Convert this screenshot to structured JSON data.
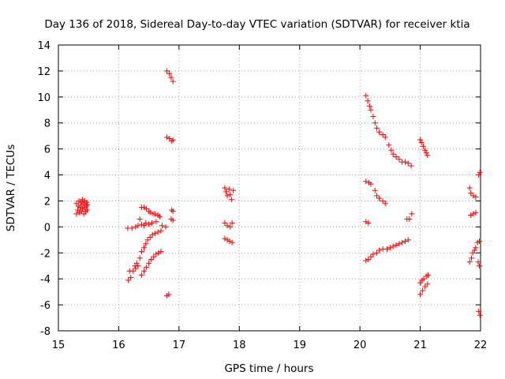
{
  "chart_data": {
    "type": "scatter",
    "title": "Day 136 of 2018, Sidereal Day-to-day VTEC variation (SDTVAR) for receiver ktia",
    "xlabel": "GPS time / hours",
    "ylabel": "SDTVAR / TECUs",
    "xlim": [
      15,
      22
    ],
    "ylim": [
      -8,
      14
    ],
    "xticks": [
      "15",
      "16",
      "17",
      "18",
      "19",
      "20",
      "21",
      "22"
    ],
    "yticks": [
      "-8",
      "-6",
      "-4",
      "-2",
      "0",
      "2",
      "4",
      "6",
      "8",
      "10",
      "12",
      "14"
    ],
    "grid": true,
    "marker": "+",
    "marker_color": "#ff0000",
    "series": [
      {
        "name": "SDTVAR",
        "points": [
          [
            15.3,
            1.0
          ],
          [
            15.3,
            1.8
          ],
          [
            15.32,
            1.3
          ],
          [
            15.33,
            1.6
          ],
          [
            15.34,
            2.0
          ],
          [
            15.35,
            1.1
          ],
          [
            15.36,
            1.5
          ],
          [
            15.37,
            1.9
          ],
          [
            15.38,
            1.2
          ],
          [
            15.39,
            1.7
          ],
          [
            15.4,
            2.1
          ],
          [
            15.4,
            1.4
          ],
          [
            15.42,
            1.0
          ],
          [
            15.42,
            1.8
          ],
          [
            15.43,
            1.5
          ],
          [
            15.44,
            2.0
          ],
          [
            15.45,
            1.2
          ],
          [
            15.46,
            1.6
          ],
          [
            15.47,
            1.9
          ],
          [
            15.48,
            1.3
          ],
          [
            15.48,
            1.7
          ],
          [
            16.15,
            -0.1
          ],
          [
            16.22,
            -0.1
          ],
          [
            16.28,
            0.0
          ],
          [
            16.32,
            0.1
          ],
          [
            16.35,
            0.6
          ],
          [
            16.38,
            0.2
          ],
          [
            16.42,
            0.1
          ],
          [
            16.45,
            0.3
          ],
          [
            16.5,
            0.2
          ],
          [
            16.55,
            0.3
          ],
          [
            16.62,
            0.4
          ],
          [
            16.68,
            0.8
          ],
          [
            16.72,
            0.1
          ],
          [
            16.78,
            0.0
          ],
          [
            16.38,
            1.5
          ],
          [
            16.42,
            1.5
          ],
          [
            16.46,
            1.4
          ],
          [
            16.5,
            1.2
          ],
          [
            16.53,
            1.1
          ],
          [
            16.57,
            1.0
          ],
          [
            16.6,
            1.0
          ],
          [
            16.65,
            0.9
          ],
          [
            16.38,
            -1.9
          ],
          [
            16.42,
            -1.6
          ],
          [
            16.45,
            -1.3
          ],
          [
            16.48,
            -1.0
          ],
          [
            16.52,
            -0.8
          ],
          [
            16.56,
            -0.6
          ],
          [
            16.6,
            -0.5
          ],
          [
            16.65,
            -0.4
          ],
          [
            16.7,
            -0.3
          ],
          [
            16.16,
            -4.1
          ],
          [
            16.2,
            -3.9
          ],
          [
            16.24,
            -3.4
          ],
          [
            16.27,
            -3.0
          ],
          [
            16.3,
            -2.8
          ],
          [
            16.35,
            -2.4
          ],
          [
            16.38,
            -3.7
          ],
          [
            16.42,
            -3.4
          ],
          [
            16.46,
            -3.1
          ],
          [
            16.5,
            -2.8
          ],
          [
            16.54,
            -2.5
          ],
          [
            16.58,
            -2.3
          ],
          [
            16.62,
            -2.1
          ],
          [
            16.66,
            -2.0
          ],
          [
            16.7,
            -1.9
          ],
          [
            16.18,
            -3.4
          ],
          [
            16.28,
            -3.2
          ],
          [
            16.32,
            -3.0
          ],
          [
            16.8,
            12.0
          ],
          [
            16.84,
            11.8
          ],
          [
            16.87,
            11.5
          ],
          [
            16.9,
            11.2
          ],
          [
            16.8,
            6.9
          ],
          [
            16.84,
            6.8
          ],
          [
            16.88,
            6.6
          ],
          [
            16.9,
            6.7
          ],
          [
            16.88,
            1.3
          ],
          [
            16.9,
            1.2
          ],
          [
            16.87,
            0.6
          ],
          [
            16.9,
            0.5
          ],
          [
            16.8,
            -5.3
          ],
          [
            16.83,
            -5.2
          ],
          [
            17.76,
            3.0
          ],
          [
            17.78,
            2.7
          ],
          [
            17.8,
            2.4
          ],
          [
            17.83,
            2.9
          ],
          [
            17.85,
            2.5
          ],
          [
            17.87,
            2.1
          ],
          [
            17.9,
            2.8
          ],
          [
            17.76,
            0.3
          ],
          [
            17.8,
            0.1
          ],
          [
            17.85,
            0.0
          ],
          [
            17.88,
            0.3
          ],
          [
            17.76,
            -0.9
          ],
          [
            17.8,
            -1.0
          ],
          [
            17.84,
            -1.1
          ],
          [
            17.88,
            -1.2
          ],
          [
            20.1,
            10.1
          ],
          [
            20.13,
            9.7
          ],
          [
            20.16,
            9.3
          ],
          [
            20.18,
            9.0
          ],
          [
            20.22,
            8.5
          ],
          [
            20.25,
            8.0
          ],
          [
            20.28,
            7.6
          ],
          [
            20.32,
            7.3
          ],
          [
            20.38,
            7.1
          ],
          [
            20.42,
            6.9
          ],
          [
            20.48,
            6.3
          ],
          [
            20.52,
            5.9
          ],
          [
            20.55,
            5.6
          ],
          [
            20.6,
            5.4
          ],
          [
            20.65,
            5.2
          ],
          [
            20.7,
            5.0
          ],
          [
            20.75,
            5.0
          ],
          [
            20.8,
            4.9
          ],
          [
            20.85,
            4.7
          ],
          [
            20.1,
            3.5
          ],
          [
            20.15,
            3.4
          ],
          [
            20.18,
            3.3
          ],
          [
            20.25,
            2.8
          ],
          [
            20.28,
            2.4
          ],
          [
            20.32,
            2.2
          ],
          [
            20.38,
            2.0
          ],
          [
            20.42,
            1.8
          ],
          [
            20.1,
            0.4
          ],
          [
            20.14,
            0.3
          ],
          [
            20.78,
            0.6
          ],
          [
            20.82,
            0.6
          ],
          [
            20.86,
            1.0
          ],
          [
            20.1,
            -2.6
          ],
          [
            20.14,
            -2.5
          ],
          [
            20.18,
            -2.3
          ],
          [
            20.22,
            -2.1
          ],
          [
            20.28,
            -2.0
          ],
          [
            20.32,
            -1.8
          ],
          [
            20.38,
            -1.7
          ],
          [
            20.45,
            -1.7
          ],
          [
            20.5,
            -1.6
          ],
          [
            20.55,
            -1.5
          ],
          [
            20.6,
            -1.4
          ],
          [
            20.65,
            -1.3
          ],
          [
            20.7,
            -1.2
          ],
          [
            20.75,
            -1.1
          ],
          [
            20.8,
            -1.0
          ],
          [
            21.0,
            6.7
          ],
          [
            21.02,
            6.5
          ],
          [
            21.05,
            6.2
          ],
          [
            21.08,
            5.9
          ],
          [
            21.1,
            5.7
          ],
          [
            21.12,
            5.5
          ],
          [
            21.0,
            -4.3
          ],
          [
            21.03,
            -4.1
          ],
          [
            21.06,
            -4.0
          ],
          [
            21.1,
            -3.8
          ],
          [
            21.13,
            -3.7
          ],
          [
            21.0,
            -5.2
          ],
          [
            21.04,
            -4.9
          ],
          [
            21.08,
            -4.6
          ],
          [
            21.12,
            -4.4
          ],
          [
            21.82,
            3.0
          ],
          [
            21.84,
            2.6
          ],
          [
            21.88,
            2.4
          ],
          [
            21.92,
            2.3
          ],
          [
            21.84,
            0.9
          ],
          [
            21.88,
            1.0
          ],
          [
            21.92,
            1.1
          ],
          [
            21.82,
            -2.7
          ],
          [
            21.85,
            -2.4
          ],
          [
            21.87,
            -2.0
          ],
          [
            21.9,
            -1.8
          ],
          [
            21.92,
            -1.6
          ],
          [
            21.95,
            -1.2
          ],
          [
            21.98,
            -1.1
          ],
          [
            21.96,
            -2.7
          ],
          [
            21.98,
            -3.0
          ],
          [
            21.97,
            4.0
          ],
          [
            21.99,
            4.2
          ],
          [
            21.97,
            -6.5
          ],
          [
            21.99,
            -6.8
          ]
        ]
      }
    ]
  }
}
